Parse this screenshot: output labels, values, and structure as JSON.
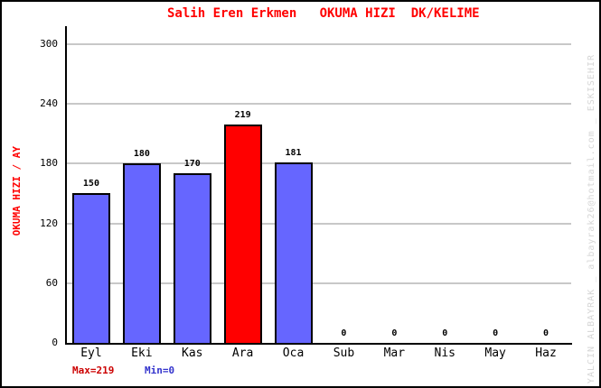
{
  "title": "Salih Eren Erkmen   OKUMA HIZI  DK/KELIME",
  "chart_data": {
    "type": "bar",
    "title": "Salih Eren Erkmen   OKUMA HIZI  DK/KELIME",
    "categories": [
      "Eyl",
      "Eki",
      "Kas",
      "Ara",
      "Oca",
      "Sub",
      "Mar",
      "Nis",
      "May",
      "Haz"
    ],
    "values": [
      150,
      180,
      170,
      219,
      181,
      0,
      0,
      0,
      0,
      0
    ],
    "xlabel": "",
    "ylabel": "OKUMA HIZI / AY",
    "ylim": [
      0,
      300
    ],
    "yticks": [
      0,
      60,
      120,
      180,
      240,
      300
    ],
    "grid": true,
    "legend": "none",
    "highlight_index": 3,
    "value_labels_shown": true
  },
  "footer": {
    "max_label": "Max=219",
    "min_label": "Min=0"
  },
  "watermark": "YALCIN ALBAYRAK _ albayrak26@hotmail.com _ ESKISEHIR",
  "colors": {
    "title": "#FF0000",
    "ylabel": "#FF0000",
    "bar": "#6666FF",
    "bar_highlight": "#FF0000",
    "bar_border": "#000000",
    "grid": "#C8C8C8",
    "axis": "#000000",
    "tick_text": "#000000",
    "value_text": "#000000",
    "max_label": "#CC0000",
    "min_label": "#3333CC",
    "watermark": "#D6D6D6",
    "background": "#FFFFFF"
  }
}
